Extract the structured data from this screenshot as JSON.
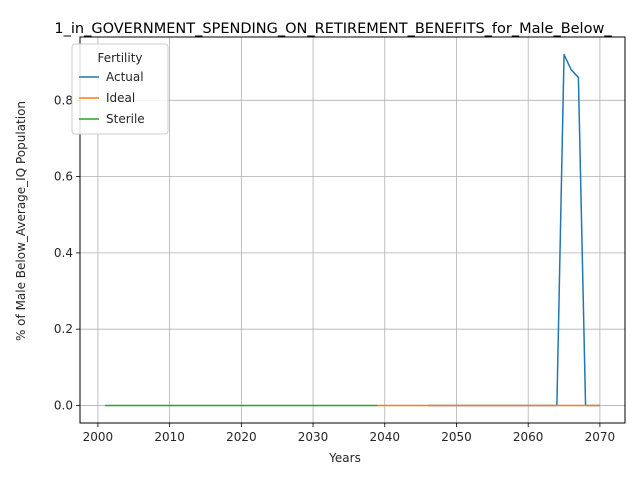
{
  "chart_data": {
    "type": "line",
    "title": "1_in_GOVERNMENT_SPENDING_ON_RETIREMENT_BENEFITS_for_Male_Below_",
    "xlabel": "Years",
    "ylabel": "% of Male Below_Average_IQ Population",
    "xlim": [
      1997.5,
      2073.5
    ],
    "ylim": [
      -0.046,
      0.966
    ],
    "xticks": [
      2000,
      2010,
      2020,
      2030,
      2040,
      2050,
      2060,
      2070
    ],
    "yticks": [
      0.0,
      0.2,
      0.4,
      0.6,
      0.8
    ],
    "ytick_labels": [
      "0.0",
      "0.2",
      "0.4",
      "0.6",
      "0.8"
    ],
    "grid": true,
    "legend": {
      "title": "Fertility",
      "placement": "top-left"
    },
    "series": [
      {
        "name": "Actual",
        "color": "#1f77b4",
        "points": [
          [
            2046,
            0
          ],
          [
            2064,
            0
          ],
          [
            2065,
            0.92
          ],
          [
            2066,
            0.88
          ],
          [
            2067,
            0.86
          ],
          [
            2068,
            0
          ],
          [
            2070,
            0
          ]
        ]
      },
      {
        "name": "Ideal",
        "color": "#ff7f0e",
        "points": [
          [
            2039,
            0
          ],
          [
            2070,
            0
          ]
        ]
      },
      {
        "name": "Sterile",
        "color": "#2ca02c",
        "points": [
          [
            2001,
            0
          ],
          [
            2039,
            0
          ]
        ]
      }
    ]
  }
}
